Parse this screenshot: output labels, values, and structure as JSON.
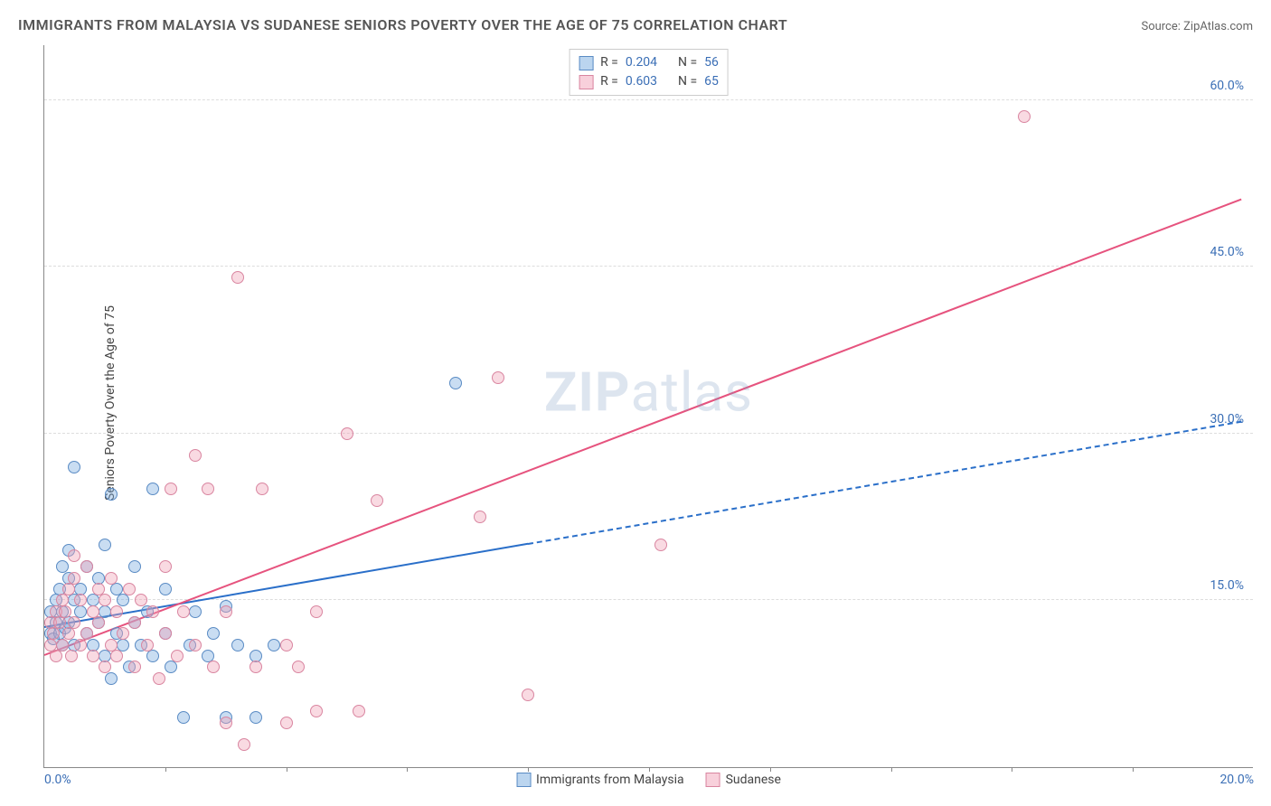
{
  "title": "IMMIGRANTS FROM MALAYSIA VS SUDANESE SENIORS POVERTY OVER THE AGE OF 75 CORRELATION CHART",
  "source_label": "Source: ",
  "source_value": "ZipAtlas.com",
  "ylabel": "Seniors Poverty Over the Age of 75",
  "watermark_bold": "ZIP",
  "watermark_light": "atlas",
  "chart": {
    "type": "scatter",
    "xlim": [
      0,
      20
    ],
    "ylim": [
      0,
      65
    ],
    "xtick_labels": [
      "0.0%",
      "20.0%"
    ],
    "xtick_positions": [
      0,
      20
    ],
    "xtick_marks": [
      2,
      4,
      6,
      8,
      10,
      12,
      14,
      16,
      18
    ],
    "ytick_labels": [
      "15.0%",
      "30.0%",
      "45.0%",
      "60.0%"
    ],
    "ytick_positions": [
      15,
      30,
      45,
      60
    ],
    "grid_color": "#dddddd",
    "axis_color": "#888888",
    "tick_label_color": "#3b6fb6",
    "background_color": "#ffffff",
    "marker_size": 14
  },
  "series": [
    {
      "name": "Immigrants from Malaysia",
      "color_fill": "rgba(119,171,223,0.4)",
      "color_stroke": "#5a8bc4",
      "reg_color": "#2a6fc9",
      "r": "0.204",
      "n": "56",
      "reg_start": [
        0,
        12.5
      ],
      "reg_solid_end": [
        8,
        20
      ],
      "reg_dash_end": [
        19.8,
        31
      ],
      "points": [
        [
          0.1,
          12
        ],
        [
          0.1,
          14
        ],
        [
          0.15,
          11.5
        ],
        [
          0.2,
          13
        ],
        [
          0.2,
          15
        ],
        [
          0.25,
          12
        ],
        [
          0.25,
          16
        ],
        [
          0.3,
          11
        ],
        [
          0.3,
          14
        ],
        [
          0.3,
          18
        ],
        [
          0.35,
          12.5
        ],
        [
          0.4,
          17
        ],
        [
          0.4,
          13
        ],
        [
          0.4,
          19.5
        ],
        [
          0.5,
          11
        ],
        [
          0.5,
          15
        ],
        [
          0.5,
          27
        ],
        [
          0.6,
          14
        ],
        [
          0.6,
          16
        ],
        [
          0.7,
          12
        ],
        [
          0.7,
          18
        ],
        [
          0.8,
          11
        ],
        [
          0.8,
          15
        ],
        [
          0.9,
          13
        ],
        [
          0.9,
          17
        ],
        [
          1.0,
          10
        ],
        [
          1.0,
          14
        ],
        [
          1.0,
          20
        ],
        [
          1.1,
          8
        ],
        [
          1.1,
          24.5
        ],
        [
          1.2,
          12
        ],
        [
          1.2,
          16
        ],
        [
          1.3,
          11
        ],
        [
          1.3,
          15
        ],
        [
          1.4,
          9
        ],
        [
          1.5,
          13
        ],
        [
          1.5,
          18
        ],
        [
          1.6,
          11
        ],
        [
          1.7,
          14
        ],
        [
          1.8,
          10
        ],
        [
          1.8,
          25
        ],
        [
          2.0,
          12
        ],
        [
          2.0,
          16
        ],
        [
          2.1,
          9
        ],
        [
          2.3,
          4.5
        ],
        [
          2.4,
          11
        ],
        [
          2.5,
          14
        ],
        [
          2.7,
          10
        ],
        [
          2.8,
          12
        ],
        [
          3.0,
          4.5
        ],
        [
          3.0,
          14.5
        ],
        [
          3.2,
          11
        ],
        [
          3.5,
          4.5
        ],
        [
          3.5,
          10
        ],
        [
          3.8,
          11
        ],
        [
          6.8,
          34.5
        ]
      ]
    },
    {
      "name": "Sudanese",
      "color_fill": "rgba(241,162,183,0.4)",
      "color_stroke": "#d985a0",
      "reg_color": "#e6537e",
      "r": "0.603",
      "n": "65",
      "reg_start": [
        0,
        10
      ],
      "reg_solid_end": [
        19.8,
        51
      ],
      "reg_dash_end": null,
      "points": [
        [
          0.1,
          11
        ],
        [
          0.1,
          13
        ],
        [
          0.15,
          12
        ],
        [
          0.2,
          14
        ],
        [
          0.2,
          10
        ],
        [
          0.25,
          13
        ],
        [
          0.3,
          15
        ],
        [
          0.3,
          11
        ],
        [
          0.35,
          14
        ],
        [
          0.4,
          12
        ],
        [
          0.4,
          16
        ],
        [
          0.45,
          10
        ],
        [
          0.5,
          13
        ],
        [
          0.5,
          17
        ],
        [
          0.5,
          19
        ],
        [
          0.6,
          11
        ],
        [
          0.6,
          15
        ],
        [
          0.7,
          12
        ],
        [
          0.7,
          18
        ],
        [
          0.8,
          10
        ],
        [
          0.8,
          14
        ],
        [
          0.9,
          13
        ],
        [
          0.9,
          16
        ],
        [
          1.0,
          9
        ],
        [
          1.0,
          15
        ],
        [
          1.1,
          11
        ],
        [
          1.1,
          17
        ],
        [
          1.2,
          10
        ],
        [
          1.2,
          14
        ],
        [
          1.3,
          12
        ],
        [
          1.4,
          16
        ],
        [
          1.5,
          9
        ],
        [
          1.5,
          13
        ],
        [
          1.6,
          15
        ],
        [
          1.7,
          11
        ],
        [
          1.8,
          14
        ],
        [
          1.9,
          8
        ],
        [
          2.0,
          12
        ],
        [
          2.0,
          18
        ],
        [
          2.1,
          25
        ],
        [
          2.2,
          10
        ],
        [
          2.3,
          14
        ],
        [
          2.5,
          11
        ],
        [
          2.5,
          28
        ],
        [
          2.7,
          25
        ],
        [
          2.8,
          9
        ],
        [
          3.0,
          4
        ],
        [
          3.0,
          14
        ],
        [
          3.2,
          44
        ],
        [
          3.3,
          2
        ],
        [
          3.5,
          9
        ],
        [
          3.6,
          25
        ],
        [
          4.0,
          4
        ],
        [
          4.0,
          11
        ],
        [
          4.2,
          9
        ],
        [
          4.5,
          5
        ],
        [
          4.5,
          14
        ],
        [
          5.0,
          30
        ],
        [
          5.2,
          5
        ],
        [
          5.5,
          24
        ],
        [
          7.2,
          22.5
        ],
        [
          7.5,
          35
        ],
        [
          8.0,
          6.5
        ],
        [
          10.2,
          20
        ],
        [
          16.2,
          58.5
        ]
      ]
    }
  ],
  "legend_top": {
    "r_label": "R =",
    "n_label": "N ="
  },
  "legend_bottom_labels": [
    "Immigrants from Malaysia",
    "Sudanese"
  ]
}
